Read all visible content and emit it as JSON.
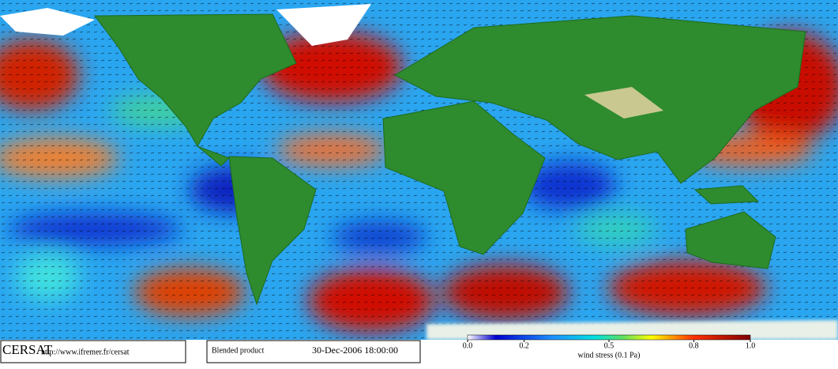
{
  "header": {
    "brand": "CERSAT",
    "url": "http://www.ifremer.fr/cersat",
    "product": "Blended product",
    "datetime": "30-Dec-2006 18:00:00"
  },
  "colorbar": {
    "label": "wind stress (0.1 Pa)",
    "range": [
      0,
      1
    ],
    "ticks": [
      {
        "value": 0,
        "label": "0.0"
      },
      0.2,
      0.5,
      0.8,
      {
        "value": 1,
        "label": "1.0"
      }
    ]
  }
}
